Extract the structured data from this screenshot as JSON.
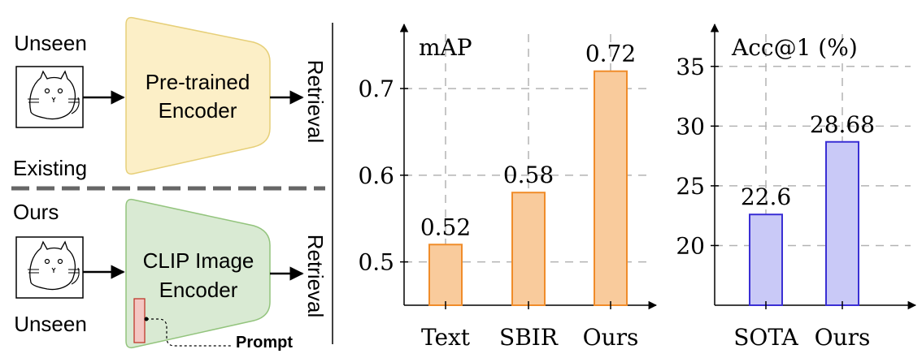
{
  "diagram": {
    "existing": {
      "input_label": "Unseen",
      "encoder_line1": "Pre-trained",
      "encoder_line2": "Encoder",
      "section_label": "Existing",
      "output_label": "Retrieval"
    },
    "ours": {
      "section_label": "Ours",
      "input_label": "Unseen",
      "encoder_line1": "CLIP Image",
      "encoder_line2": "Encoder",
      "prompt_label": "Prompt",
      "output_label": "Retrieval"
    },
    "icons": [
      "cat-sketch-icon",
      "cat-sketch-icon"
    ],
    "colors": {
      "existing_encoder_fill": "#fcefc7",
      "existing_encoder_stroke": "#e6cf78",
      "ours_encoder_fill": "#d9ead3",
      "ours_encoder_stroke": "#93c47d",
      "prompt_fill": "#f4c7c3",
      "prompt_stroke": "#c0392b",
      "divider": "#666666"
    }
  },
  "chart_data": [
    {
      "type": "bar",
      "ylabel": "mAP",
      "categories": [
        "Text",
        "SBIR",
        "Ours"
      ],
      "values": [
        0.52,
        0.58,
        0.72
      ],
      "value_labels": [
        "0.52",
        "0.58",
        "0.72"
      ],
      "ylim": [
        0.45,
        0.76
      ],
      "yticks": [
        0.5,
        0.6,
        0.7
      ],
      "ytick_labels": [
        "0.5",
        "0.6",
        "0.7"
      ],
      "grid": true,
      "color_fill": "#f9cb9c",
      "color_stroke": "#f08c2a"
    },
    {
      "type": "bar",
      "ylabel": "Acc@1 (%)",
      "categories": [
        "SOTA",
        "Ours"
      ],
      "values": [
        22.6,
        28.68
      ],
      "value_labels": [
        "22.6",
        "28.68"
      ],
      "ylim": [
        15,
        37.5
      ],
      "yticks": [
        20,
        25,
        30,
        35
      ],
      "ytick_labels": [
        "20",
        "25",
        "30",
        "35"
      ],
      "grid": true,
      "color_fill": "#c9c9f7",
      "color_stroke": "#3a2fd4"
    }
  ]
}
